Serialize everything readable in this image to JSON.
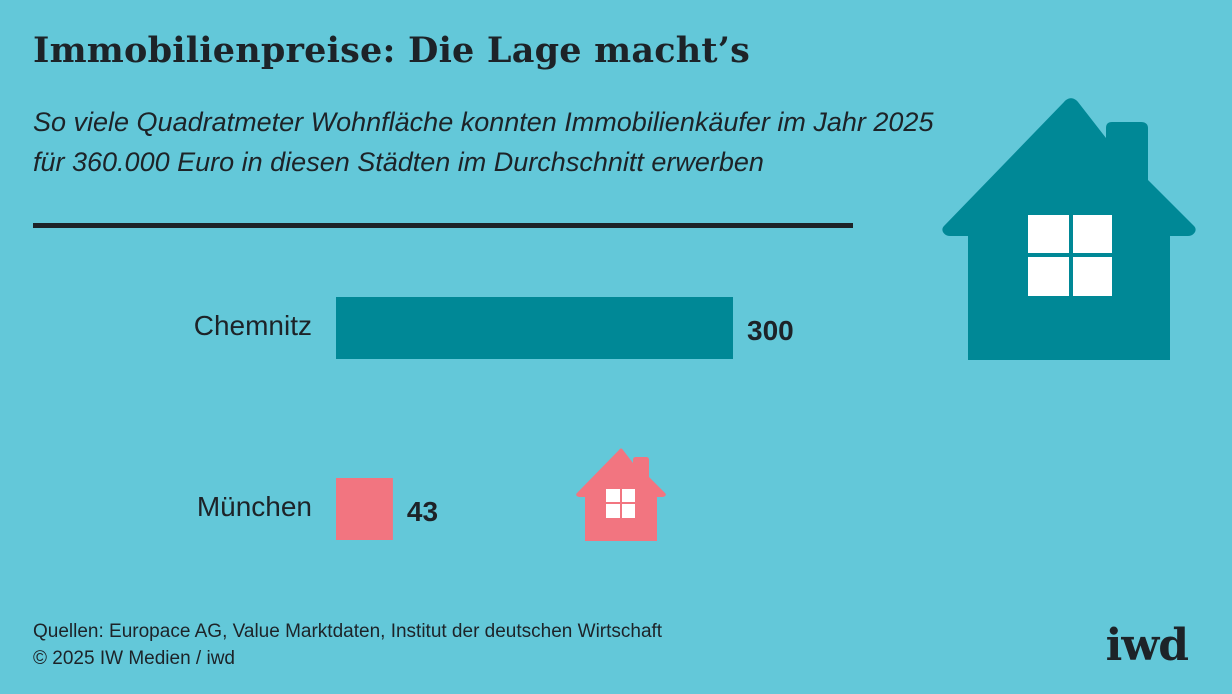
{
  "header": {
    "title": "Immobilienpreise: Die Lage macht’s",
    "subtitle": "So viele Quadratmeter Wohnfläche konnten Immobilienkäufer im Jahr 2025 für 360.000 Euro in diesen Städten im Durchschnitt erwerben"
  },
  "chart_data": {
    "type": "bar",
    "orientation": "horizontal",
    "categories": [
      "Chemnitz",
      "München"
    ],
    "values": [
      300,
      43
    ],
    "value_labels": [
      "300",
      "43"
    ],
    "title": "Immobilienpreise: Die Lage macht’s",
    "xlabel": "",
    "ylabel": "",
    "grid": false,
    "legend": "none",
    "colors": [
      "#008896",
      "#f27580"
    ]
  },
  "illustrations": {
    "large_house_color": "#008896",
    "small_house_color": "#f27580",
    "window_color": "#ffffff",
    "icon": "house-icon"
  },
  "footer": {
    "source_line1": "Quellen: Europace AG, Value Marktdaten, Institut der deutschen Wirtschaft",
    "source_line2": "© 2025 IW Medien / iwd",
    "logo": "iwd"
  },
  "colors": {
    "background": "#63c8d9",
    "text": "#1d2328"
  }
}
